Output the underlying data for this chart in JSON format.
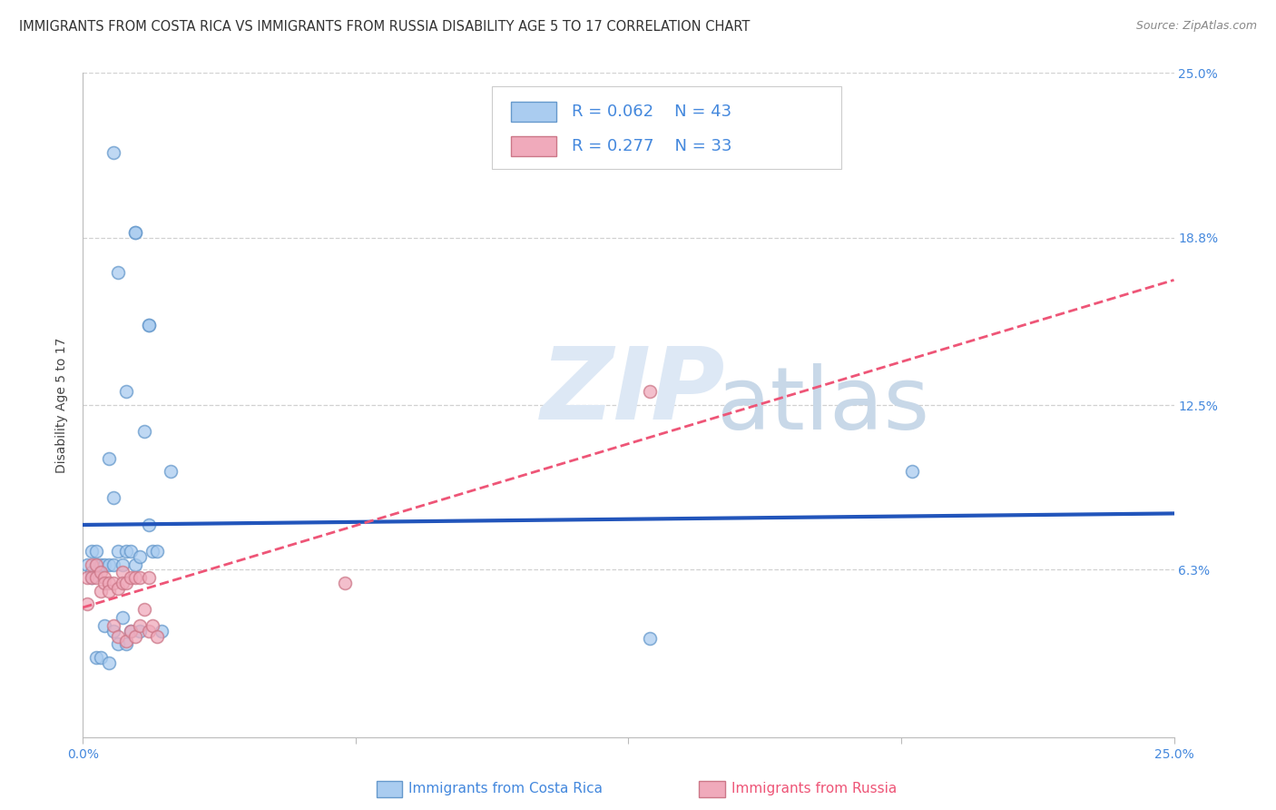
{
  "title": "IMMIGRANTS FROM COSTA RICA VS IMMIGRANTS FROM RUSSIA DISABILITY AGE 5 TO 17 CORRELATION CHART",
  "source": "Source: ZipAtlas.com",
  "ylabel": "Disability Age 5 to 17",
  "xlim": [
    0.0,
    0.25
  ],
  "ylim": [
    0.0,
    0.25
  ],
  "ytick_labels_right": [
    "6.3%",
    "12.5%",
    "18.8%",
    "25.0%"
  ],
  "ytick_positions_right": [
    0.063,
    0.125,
    0.188,
    0.25
  ],
  "grid_color": "#cccccc",
  "background_color": "#ffffff",
  "costa_rica_fill": "#aaccf0",
  "costa_rica_edge": "#6699cc",
  "russia_fill": "#f0aabb",
  "russia_edge": "#cc7788",
  "trend_blue": "#2255bb",
  "trend_pink": "#ee5577",
  "legend_R1": "0.062",
  "legend_N1": "43",
  "legend_R2": "0.277",
  "legend_N2": "33",
  "watermark": "ZIPatlas",
  "watermark_color": "#dde0ee",
  "title_fontsize": 10.5,
  "axis_label_fontsize": 10,
  "tick_fontsize": 10,
  "legend_fontsize": 13,
  "x_cr": [
    0.001,
    0.002,
    0.002,
    0.002,
    0.003,
    0.003,
    0.003,
    0.004,
    0.004,
    0.005,
    0.005,
    0.006,
    0.006,
    0.007,
    0.007,
    0.008,
    0.008,
    0.009,
    0.009,
    0.01,
    0.01,
    0.011,
    0.011,
    0.012,
    0.012,
    0.013,
    0.013,
    0.014,
    0.015,
    0.015,
    0.016,
    0.017,
    0.018,
    0.02,
    0.006,
    0.007,
    0.008,
    0.01,
    0.012,
    0.015,
    0.19,
    0.007,
    0.13
  ],
  "y_cr": [
    0.065,
    0.07,
    0.062,
    0.06,
    0.07,
    0.065,
    0.03,
    0.065,
    0.03,
    0.065,
    0.042,
    0.065,
    0.028,
    0.065,
    0.04,
    0.07,
    0.035,
    0.065,
    0.045,
    0.07,
    0.035,
    0.07,
    0.04,
    0.065,
    0.19,
    0.068,
    0.04,
    0.115,
    0.08,
    0.155,
    0.07,
    0.07,
    0.04,
    0.1,
    0.105,
    0.09,
    0.175,
    0.13,
    0.19,
    0.155,
    0.1,
    0.22,
    0.037
  ],
  "x_ru": [
    0.001,
    0.001,
    0.002,
    0.002,
    0.003,
    0.003,
    0.004,
    0.004,
    0.005,
    0.005,
    0.006,
    0.006,
    0.007,
    0.007,
    0.008,
    0.008,
    0.009,
    0.009,
    0.01,
    0.01,
    0.011,
    0.011,
    0.012,
    0.012,
    0.013,
    0.013,
    0.014,
    0.015,
    0.015,
    0.016,
    0.017,
    0.06,
    0.13
  ],
  "y_ru": [
    0.05,
    0.06,
    0.06,
    0.065,
    0.06,
    0.065,
    0.055,
    0.062,
    0.06,
    0.058,
    0.058,
    0.055,
    0.058,
    0.042,
    0.056,
    0.038,
    0.062,
    0.058,
    0.058,
    0.036,
    0.06,
    0.04,
    0.06,
    0.038,
    0.06,
    0.042,
    0.048,
    0.06,
    0.04,
    0.042,
    0.038,
    0.058,
    0.13
  ]
}
